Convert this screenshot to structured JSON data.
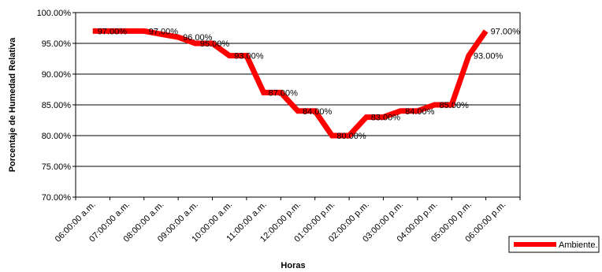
{
  "chart_data": {
    "type": "line",
    "title": "",
    "xlabel": "Horas",
    "ylabel": "Porcentaje de Humedad Relativa",
    "ylim": [
      70,
      100
    ],
    "yticks": [
      "70.00%",
      "75.00%",
      "80.00%",
      "85.00%",
      "90.00%",
      "95.00%",
      "100.00%"
    ],
    "grid": true,
    "legend_placement": "right",
    "categories": [
      "06:00:00 a.m.",
      "07:00:00 a.m.",
      "08:00:00 a.m.",
      "09:00:00 a.m.",
      "10:00:00 a.m.",
      "11:00:00 a.m.",
      "12:00:00 p.m.",
      "01:00:00 p.m.",
      "02:00:00 p.m.",
      "03:00:00 p.m.",
      "04:00:00 p.m.",
      "05:00:00 p.m.",
      "06:00:00 p.m."
    ],
    "x": [
      0,
      1,
      1.5,
      2,
      2.5,
      3,
      3.5,
      4,
      4.5,
      5,
      5.5,
      6,
      6.5,
      7,
      7.5,
      8,
      8.5,
      9,
      9.5,
      10,
      10.5,
      11,
      11.5
    ],
    "series": [
      {
        "name": "Ambiente.",
        "color": "#ff0000",
        "values": [
          97,
          97,
          97,
          96.5,
          96,
          95,
          95,
          93,
          93,
          87,
          87,
          84,
          84,
          80,
          80,
          83,
          83,
          84,
          84,
          85,
          85,
          93,
          97
        ],
        "data_labels": [
          "97.00%",
          "",
          "97.00%",
          "",
          "96.00%",
          "95.00%",
          "",
          "93.00%",
          "",
          "87.00%",
          "",
          "84.00%",
          "",
          "80.00%",
          "",
          "83.00%",
          "",
          "84.00%",
          "",
          "85.00%",
          "",
          "93.00%",
          "97.00%"
        ]
      }
    ]
  }
}
